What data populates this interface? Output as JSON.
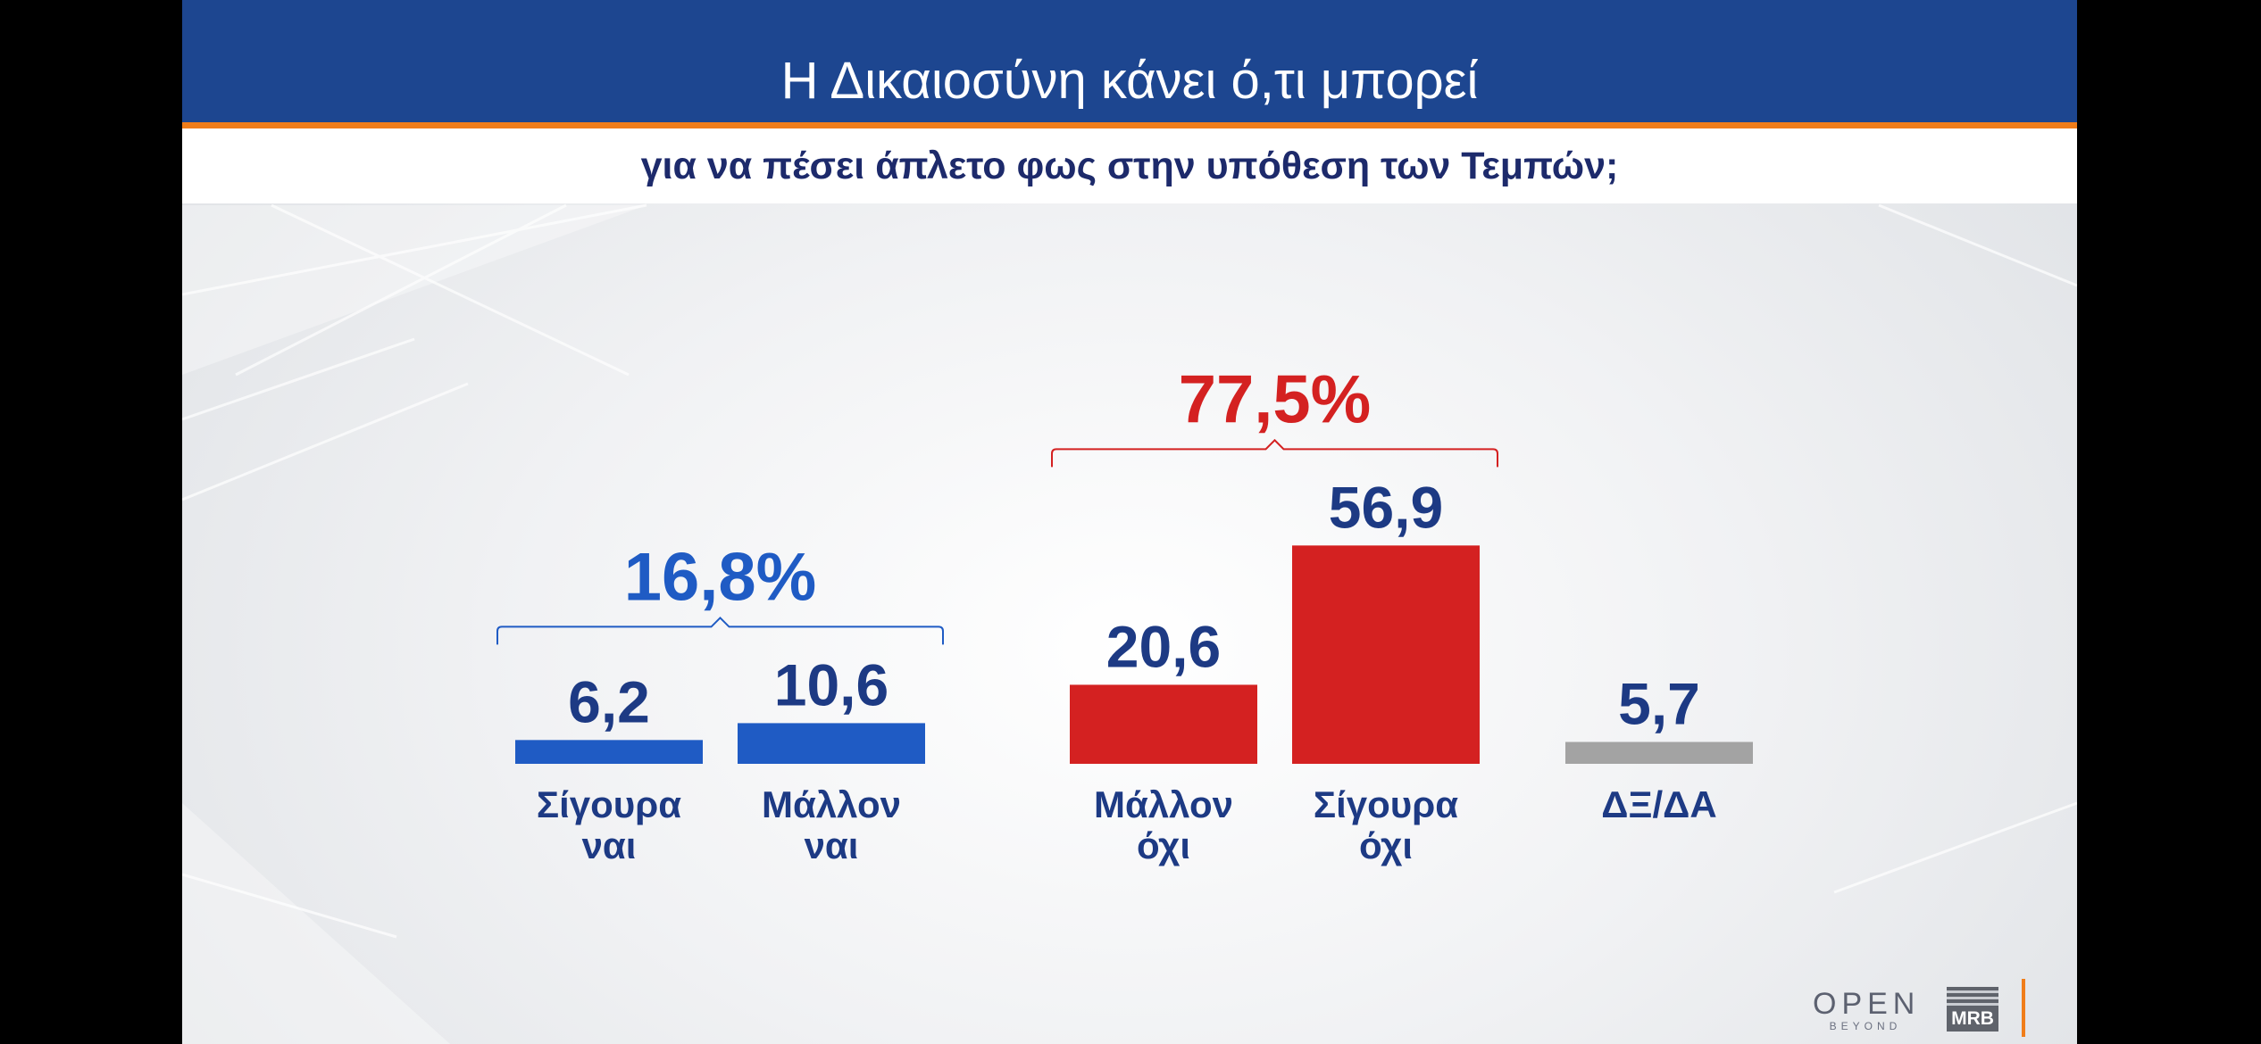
{
  "header": {
    "title": "Η Δικαιοσύνη κάνει ό,τι μπορεί",
    "subtitle": "για να πέσει άπλετο φως στην υπόθεση των Τεμπών;"
  },
  "logos": {
    "open": "OPEN",
    "beyond": "BEYOND",
    "mrb": "MRB"
  },
  "chart_data": {
    "type": "bar",
    "title": "Η Δικαιοσύνη κάνει ό,τι μπορεί",
    "subtitle": "για να πέσει άπλετο φως στην υπόθεση των Τεμπών;",
    "categories": [
      [
        "Σίγουρα",
        "ναι"
      ],
      [
        "Μάλλον",
        "ναι"
      ],
      [
        "Μάλλον",
        "όχι"
      ],
      [
        "Σίγουρα",
        "όχι"
      ],
      [
        "ΔΞ/ΔΑ"
      ]
    ],
    "values": [
      6.2,
      10.6,
      20.6,
      56.9,
      5.7
    ],
    "value_labels": [
      "6,2",
      "10,6",
      "20,6",
      "56,9",
      "5,7"
    ],
    "colors": [
      "#1f5bc4",
      "#1f5bc4",
      "#d42121",
      "#d42121",
      "#a3a3a3"
    ],
    "label_color": "#1d3a84",
    "groups": [
      {
        "label": "16,8%",
        "value": 16.8,
        "bars": [
          0,
          1
        ],
        "color": "#1f5bc4"
      },
      {
        "label": "77,5%",
        "value": 77.5,
        "bars": [
          2,
          3
        ],
        "color": "#d42121"
      }
    ],
    "ylim": [
      0,
      60
    ],
    "grid": false,
    "legend": "none"
  }
}
